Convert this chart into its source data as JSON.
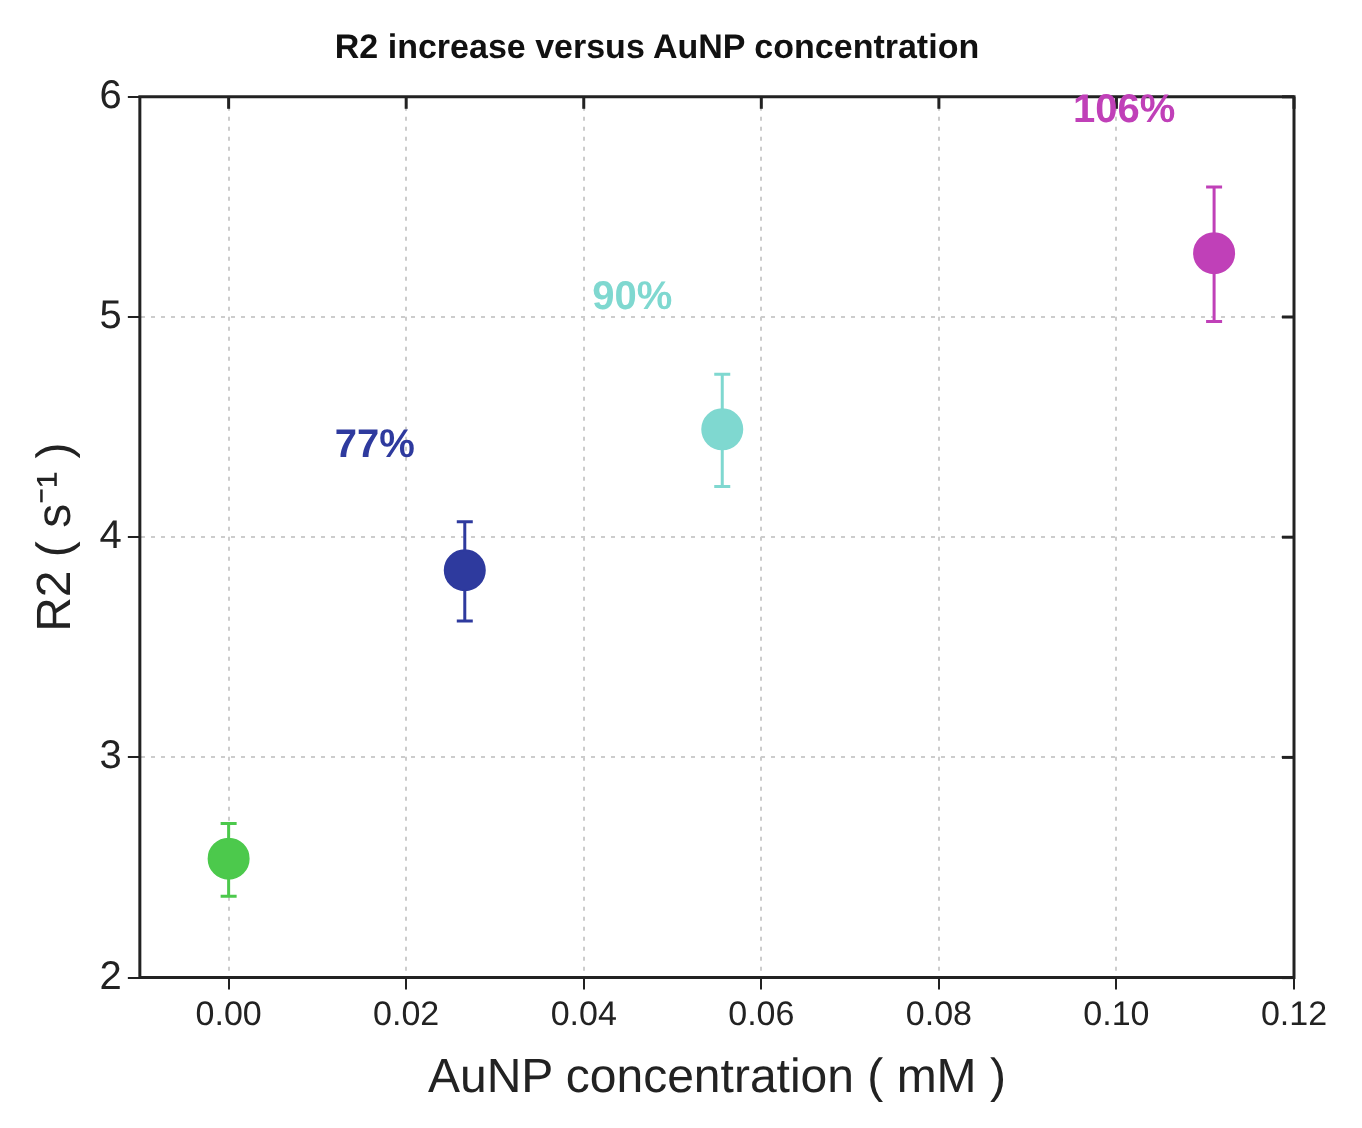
{
  "chart_data": {
    "type": "scatter",
    "title": "R2 increase versus AuNP concentration",
    "xlabel": "AuNP concentration ( mM )",
    "ylabel": "R2 ( s⁻¹ )",
    "x": [
      0,
      0.0266,
      0.0556,
      0.111
    ],
    "values": [
      2.54,
      3.85,
      4.49,
      5.29
    ],
    "errors": [
      [
        2.37,
        2.7
      ],
      [
        3.62,
        4.07
      ],
      [
        4.23,
        4.74
      ],
      [
        4.98,
        5.59
      ]
    ],
    "colors": [
      "#4cc94c",
      "#2e3a9e",
      "#7fd8d0",
      "#c040b8"
    ],
    "annotations": [
      "77%",
      "90%",
      "106%"
    ],
    "xlim": [
      -0.01,
      0.12
    ],
    "xticks": [
      {
        "value": 0,
        "label": "0.00"
      },
      {
        "value": 0.02,
        "label": "0.02"
      },
      {
        "value": 0.04,
        "label": "0.04"
      },
      {
        "value": 0.06,
        "label": "0.06"
      },
      {
        "value": 0.08,
        "label": "0.08"
      },
      {
        "value": 0.1,
        "label": "0.10"
      },
      {
        "value": 0.12,
        "label": "0.12"
      }
    ],
    "ylim": [
      2,
      6
    ],
    "yticks": [
      2,
      3,
      4,
      5,
      6
    ],
    "grid": true,
    "marker": "circle",
    "legend": false
  }
}
